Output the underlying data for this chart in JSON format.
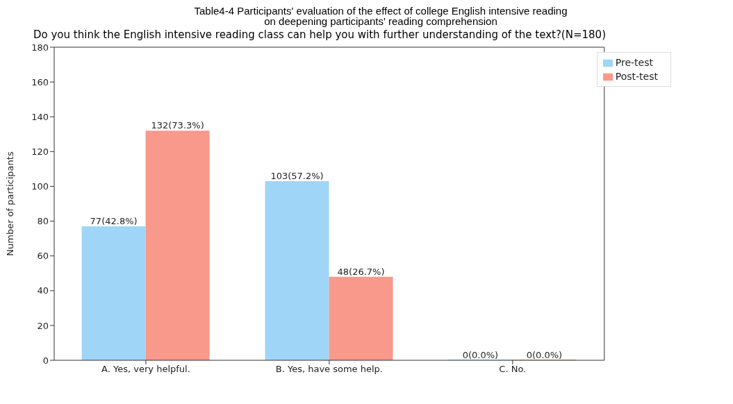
{
  "chart_data": {
    "type": "bar",
    "title": "Table4-4 Participants' evaluation of the effect of college English intensive reading\non deepening participants' reading comprehension",
    "subtitle": "Do you think the English intensive reading class can help you with further understanding of the text?(N=180)",
    "ylabel": "Number of participants",
    "categories": [
      "A. Yes, very helpful.",
      "B. Yes, have some help.",
      "C. No."
    ],
    "series": [
      {
        "name": "Pre-test",
        "color": "#9fd5f7",
        "values": [
          77,
          103,
          0
        ],
        "value_labels": [
          "77(42.8%)",
          "103(57.2%)",
          "0(0.0%)"
        ]
      },
      {
        "name": "Post-test",
        "color": "#f8998b",
        "values": [
          132,
          48,
          0
        ],
        "value_labels": [
          "132(73.3%)",
          "48(26.7%)",
          "0(0.0%)"
        ]
      }
    ],
    "ylim": [
      0,
      180
    ],
    "yticks": [
      0,
      20,
      40,
      60,
      80,
      100,
      120,
      140,
      160,
      180
    ],
    "grid": false,
    "legend": "top right"
  }
}
